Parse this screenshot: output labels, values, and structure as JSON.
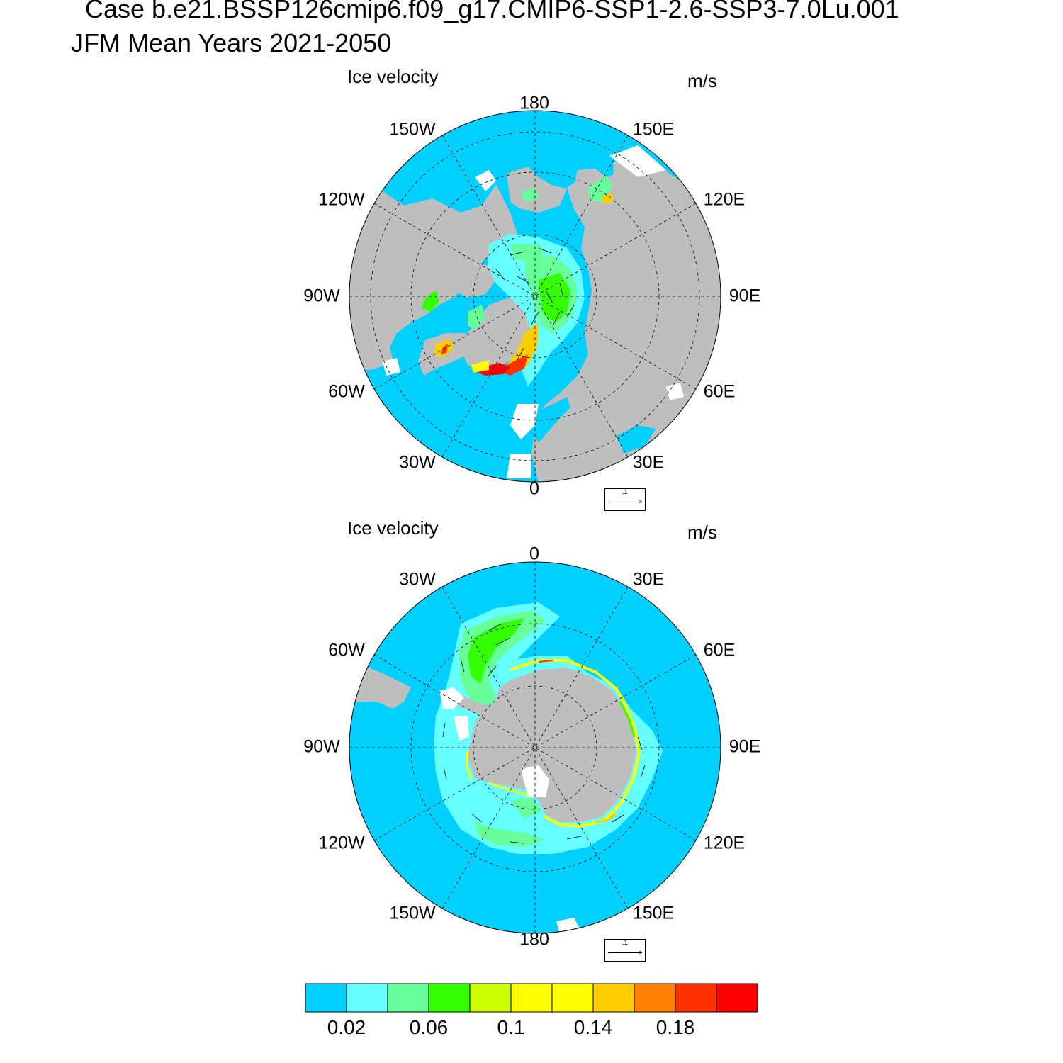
{
  "header": {
    "case_title": "Case b.e21.BSSP126cmip6.f09_g17.CMIP6-SSP1-2.6-SSP3-7.0Lu.001",
    "mean_title": "JFM Mean   Years 2021-2050"
  },
  "panels": [
    {
      "id": "arctic",
      "title": "Ice velocity",
      "units": "m/s",
      "top_label": "180",
      "bottom_label": "0",
      "lon_labels": [
        "150W",
        "150E",
        "120W",
        "120E",
        "90W",
        "90E",
        "60W",
        "60E",
        "30W",
        "30E"
      ],
      "reference_vector": ".1"
    },
    {
      "id": "antarctic",
      "title": "Ice velocity",
      "units": "m/s",
      "top_label": "0",
      "bottom_label": "180",
      "lon_labels": [
        "30W",
        "30E",
        "60W",
        "60E",
        "90W",
        "90E",
        "120W",
        "120E",
        "150W",
        "150E"
      ],
      "reference_vector": ".1"
    }
  ],
  "colorbar": {
    "colors": [
      "#00d0ff",
      "#66ffff",
      "#66ff99",
      "#33ff00",
      "#ccff00",
      "#ffff00",
      "#ffff00",
      "#ffcc00",
      "#ff8000",
      "#ff3300",
      "#ff0000"
    ],
    "tick_labels": [
      "0.02",
      "0.06",
      "0.1",
      "0.14",
      "0.18"
    ],
    "tick_values": [
      0.02,
      0.06,
      0.1,
      0.14,
      0.18
    ]
  },
  "map_colors": {
    "ocean": "#00d0ff",
    "land": "#bebebe",
    "no_data": "#ffffff"
  }
}
